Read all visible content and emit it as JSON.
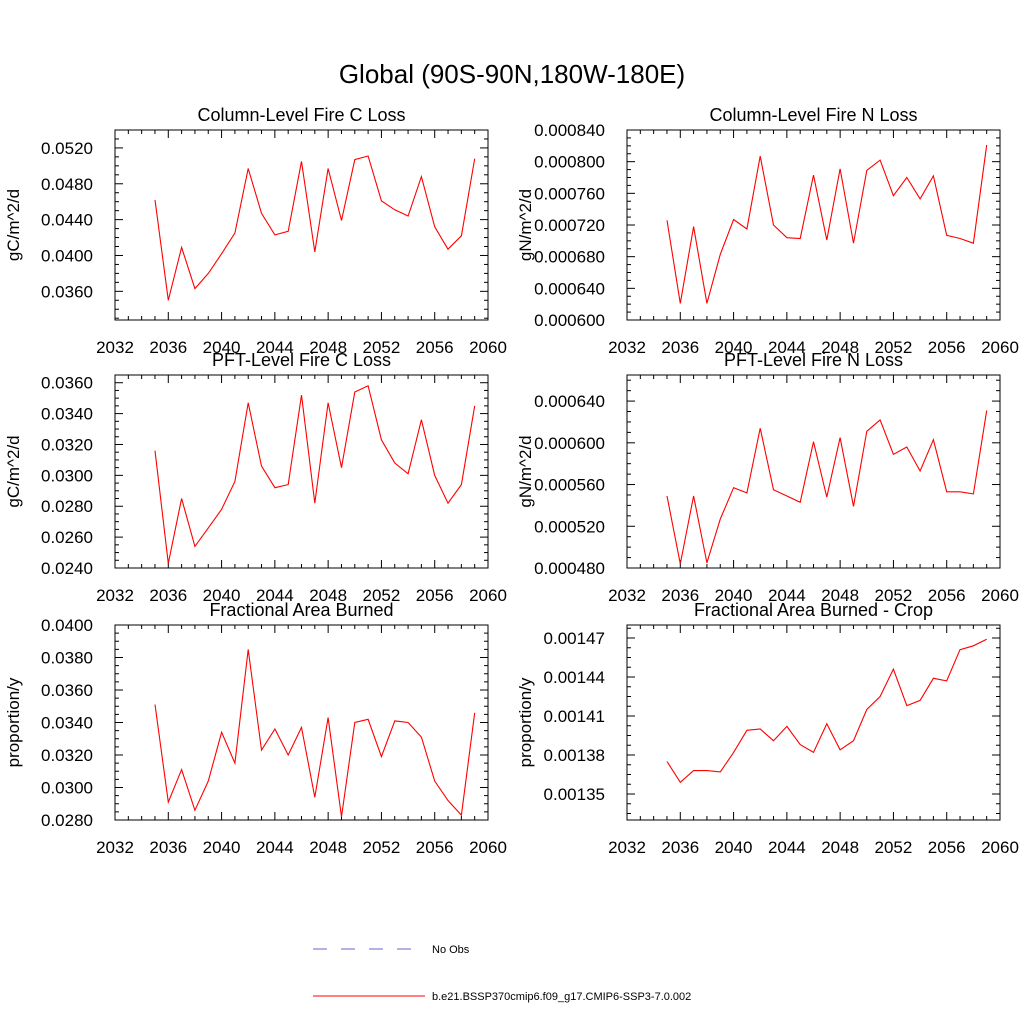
{
  "title": "Global (90S-90N,180W-180E)",
  "colors": {
    "model": "#ff0000",
    "obs": "#6666cc",
    "axis": "#000000"
  },
  "legend": {
    "entries": [
      {
        "label": "No Obs",
        "style": "dashed",
        "color": "#6666cc"
      },
      {
        "label": "b.e21.BSSP370cmip6.f09_g17.CMIP6-SSP3-7.0.002",
        "style": "solid",
        "color": "#ff0000"
      }
    ]
  },
  "chart_data": [
    {
      "type": "line",
      "title": "Column-Level Fire C Loss",
      "ylabel": "gC/m^2/d",
      "xlim": [
        2032,
        2060
      ],
      "xticks": [
        "2032",
        "2036",
        "2040",
        "2044",
        "2048",
        "2052",
        "2056",
        "2060"
      ],
      "ylim": [
        0.0328,
        0.054
      ],
      "yticks": [
        "0.0360",
        "0.0400",
        "0.0440",
        "0.0480",
        "0.0520"
      ],
      "x": [
        2035,
        2036,
        2037,
        2038,
        2039,
        2040,
        2041,
        2042,
        2043,
        2044,
        2045,
        2046,
        2047,
        2048,
        2049,
        2050,
        2051,
        2052,
        2053,
        2054,
        2055,
        2056,
        2057,
        2058,
        2059
      ],
      "series": [
        {
          "name": "b.e21.BSSP370cmip6.f09_g17.CMIP6-SSP3-7.0.002",
          "values": [
            0.0462,
            0.035,
            0.0409,
            0.0363,
            0.038,
            0.0402,
            0.0425,
            0.0497,
            0.0447,
            0.0423,
            0.0427,
            0.0505,
            0.0404,
            0.0497,
            0.0439,
            0.0507,
            0.0511,
            0.0461,
            0.0451,
            0.0444,
            0.0488,
            0.0432,
            0.0407,
            0.0422,
            0.0508
          ]
        }
      ]
    },
    {
      "type": "line",
      "title": "Column-Level Fire N Loss",
      "ylabel": "gN/m^2/d",
      "xlim": [
        2032,
        2060
      ],
      "xticks": [
        "2032",
        "2036",
        "2040",
        "2044",
        "2048",
        "2052",
        "2056",
        "2060"
      ],
      "ylim": [
        0.0006,
        0.00084
      ],
      "yticks": [
        "0.000600",
        "0.000640",
        "0.000680",
        "0.000720",
        "0.000760",
        "0.000800",
        "0.000840"
      ],
      "x": [
        2035,
        2036,
        2037,
        2038,
        2039,
        2040,
        2041,
        2042,
        2043,
        2044,
        2045,
        2046,
        2047,
        2048,
        2049,
        2050,
        2051,
        2052,
        2053,
        2054,
        2055,
        2056,
        2057,
        2058,
        2059
      ],
      "series": [
        {
          "name": "b.e21.BSSP370cmip6.f09_g17.CMIP6-SSP3-7.0.002",
          "values": [
            0.000726,
            0.000621,
            0.000718,
            0.000621,
            0.000683,
            0.000727,
            0.000715,
            0.000807,
            0.00072,
            0.000704,
            0.000703,
            0.000783,
            0.000701,
            0.000791,
            0.000697,
            0.000789,
            0.000802,
            0.000757,
            0.00078,
            0.000753,
            0.000782,
            0.000707,
            0.000703,
            0.000697,
            0.000821
          ]
        }
      ]
    },
    {
      "type": "line",
      "title": "PFT-Level Fire C Loss",
      "ylabel": "gC/m^2/d",
      "xlim": [
        2032,
        2060
      ],
      "xticks": [
        "2032",
        "2036",
        "2040",
        "2044",
        "2048",
        "2052",
        "2056",
        "2060"
      ],
      "ylim": [
        0.024,
        0.0365
      ],
      "yticks": [
        "0.0240",
        "0.0260",
        "0.0280",
        "0.0300",
        "0.0320",
        "0.0340",
        "0.0360"
      ],
      "x": [
        2035,
        2036,
        2037,
        2038,
        2039,
        2040,
        2041,
        2042,
        2043,
        2044,
        2045,
        2046,
        2047,
        2048,
        2049,
        2050,
        2051,
        2052,
        2053,
        2054,
        2055,
        2056,
        2057,
        2058,
        2059
      ],
      "series": [
        {
          "name": "b.e21.BSSP370cmip6.f09_g17.CMIP6-SSP3-7.0.002",
          "values": [
            0.0316,
            0.0243,
            0.0285,
            0.0254,
            0.0266,
            0.0278,
            0.0296,
            0.0347,
            0.0306,
            0.0292,
            0.0294,
            0.0352,
            0.0282,
            0.0347,
            0.0305,
            0.0354,
            0.0358,
            0.0323,
            0.0308,
            0.0301,
            0.0336,
            0.03,
            0.0282,
            0.0294,
            0.0345
          ]
        }
      ]
    },
    {
      "type": "line",
      "title": "PFT-Level Fire N Loss",
      "ylabel": "gN/m^2/d",
      "xlim": [
        2032,
        2060
      ],
      "xticks": [
        "2032",
        "2036",
        "2040",
        "2044",
        "2048",
        "2052",
        "2056",
        "2060"
      ],
      "ylim": [
        0.00048,
        0.000665
      ],
      "yticks": [
        "0.000480",
        "0.000520",
        "0.000560",
        "0.000600",
        "0.000640"
      ],
      "x": [
        2035,
        2036,
        2037,
        2038,
        2039,
        2040,
        2041,
        2042,
        2043,
        2044,
        2045,
        2046,
        2047,
        2048,
        2049,
        2050,
        2051,
        2052,
        2053,
        2054,
        2055,
        2056,
        2057,
        2058,
        2059
      ],
      "series": [
        {
          "name": "b.e21.BSSP370cmip6.f09_g17.CMIP6-SSP3-7.0.002",
          "values": [
            0.000549,
            0.000484,
            0.000549,
            0.000485,
            0.000527,
            0.000557,
            0.000552,
            0.000614,
            0.000555,
            0.000549,
            0.000543,
            0.000601,
            0.000548,
            0.000605,
            0.000539,
            0.000611,
            0.000622,
            0.000589,
            0.000596,
            0.000573,
            0.000603,
            0.000553,
            0.000553,
            0.000551,
            0.000631
          ]
        }
      ]
    },
    {
      "type": "line",
      "title": "Fractional Area Burned",
      "ylabel": "proportion/y",
      "xlim": [
        2032,
        2060
      ],
      "xticks": [
        "2032",
        "2036",
        "2040",
        "2044",
        "2048",
        "2052",
        "2056",
        "2060"
      ],
      "ylim": [
        0.028,
        0.04
      ],
      "yticks": [
        "0.0280",
        "0.0300",
        "0.0320",
        "0.0340",
        "0.0360",
        "0.0380",
        "0.0400"
      ],
      "x": [
        2035,
        2036,
        2037,
        2038,
        2039,
        2040,
        2041,
        2042,
        2043,
        2044,
        2045,
        2046,
        2047,
        2048,
        2049,
        2050,
        2051,
        2052,
        2053,
        2054,
        2055,
        2056,
        2057,
        2058,
        2059
      ],
      "series": [
        {
          "name": "b.e21.BSSP370cmip6.f09_g17.CMIP6-SSP3-7.0.002",
          "values": [
            0.0351,
            0.0291,
            0.0311,
            0.0286,
            0.0304,
            0.0334,
            0.0315,
            0.0385,
            0.0323,
            0.0336,
            0.032,
            0.0337,
            0.0294,
            0.0343,
            0.0282,
            0.034,
            0.0342,
            0.0319,
            0.0341,
            0.034,
            0.0331,
            0.0304,
            0.0292,
            0.0283,
            0.0346
          ]
        }
      ]
    },
    {
      "type": "line",
      "title": "Fractional Area Burned - Crop",
      "ylabel": "proportion/y",
      "xlim": [
        2032,
        2060
      ],
      "xticks": [
        "2032",
        "2036",
        "2040",
        "2044",
        "2048",
        "2052",
        "2056",
        "2060"
      ],
      "ylim": [
        0.00133,
        0.00148
      ],
      "yticks": [
        "0.00135",
        "0.00138",
        "0.00141",
        "0.00144",
        "0.00147"
      ],
      "x": [
        2035,
        2036,
        2037,
        2038,
        2039,
        2040,
        2041,
        2042,
        2043,
        2044,
        2045,
        2046,
        2047,
        2048,
        2049,
        2050,
        2051,
        2052,
        2053,
        2054,
        2055,
        2056,
        2057,
        2058,
        2059
      ],
      "series": [
        {
          "name": "b.e21.BSSP370cmip6.f09_g17.CMIP6-SSP3-7.0.002",
          "values": [
            0.001375,
            0.001359,
            0.001368,
            0.001368,
            0.001367,
            0.001382,
            0.001399,
            0.0014,
            0.001391,
            0.001402,
            0.001388,
            0.001382,
            0.001404,
            0.001384,
            0.001391,
            0.001415,
            0.001425,
            0.001446,
            0.001418,
            0.001422,
            0.001439,
            0.001437,
            0.001461,
            0.001464,
            0.001469
          ]
        }
      ]
    }
  ]
}
